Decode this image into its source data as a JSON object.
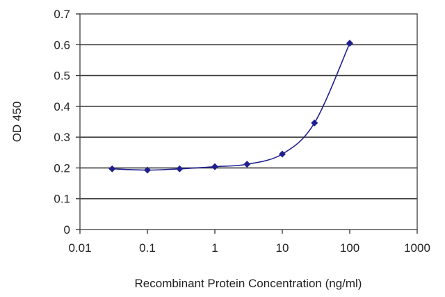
{
  "chart_data": {
    "type": "line",
    "title": "",
    "xlabel": "Recombinant Protein Concentration (ng/ml)",
    "ylabel": "OD 450",
    "x_scale": "log",
    "xlim": [
      0.01,
      1000
    ],
    "ylim": [
      0,
      0.7
    ],
    "x_ticks": [
      0.01,
      0.1,
      1,
      10,
      100,
      1000
    ],
    "x_tick_labels": [
      "0.01",
      "0.1",
      "1",
      "10",
      "100",
      "1000"
    ],
    "y_ticks": [
      0,
      0.1,
      0.2,
      0.3,
      0.4,
      0.5,
      0.6,
      0.7
    ],
    "y_tick_labels": [
      "0",
      "0.1",
      "0.2",
      "0.3",
      "0.4",
      "0.5",
      "0.6",
      "0.7"
    ],
    "grid": "horizontal",
    "legend": "none",
    "series": [
      {
        "x": [
          0.03,
          0.1,
          0.3,
          1,
          3,
          10,
          30,
          100
        ],
        "y": [
          0.197,
          0.193,
          0.197,
          0.204,
          0.212,
          0.245,
          0.346,
          0.605
        ],
        "color": "#1f1f8f",
        "marker": "diamond"
      }
    ]
  }
}
